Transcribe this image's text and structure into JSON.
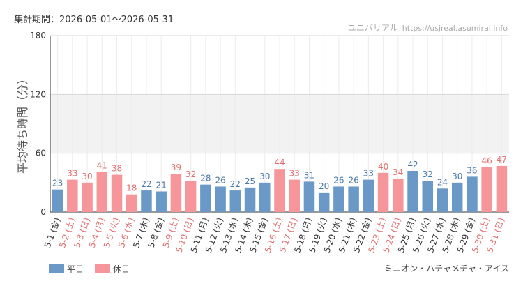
{
  "header": {
    "period_label": "集計期間：",
    "period_value": "2026-05-01～2026-05-31",
    "site_name": "ユニバリアル",
    "site_url": "https://usjreal.asumirai.info"
  },
  "footer": {
    "attraction": "ミニオン・ハチャメチャ・アイス"
  },
  "colors": {
    "weekday": "#6a99c7",
    "holiday": "#f7969a",
    "holiday_label": "#e07070",
    "weekday_label": "#4a79a8"
  },
  "chart_data": {
    "type": "bar",
    "title": "",
    "xlabel": "",
    "ylabel": "平均待ち時間（分）",
    "ylim": [
      0,
      180
    ],
    "yticks": [
      0,
      60,
      120,
      180
    ],
    "grid": true,
    "legend_position": "bottom-left",
    "series": [
      {
        "name": "平日",
        "key": "weekday"
      },
      {
        "name": "休日",
        "key": "holiday"
      }
    ],
    "categories": [
      "5-1 (金)",
      "5-2 (土)",
      "5-3 (日)",
      "5-4 (月)",
      "5-5 (火)",
      "5-6 (水)",
      "5-7 (木)",
      "5-8 (金)",
      "5-9 (土)",
      "5-10 (日)",
      "5-11 (月)",
      "5-12 (火)",
      "5-13 (水)",
      "5-14 (木)",
      "5-15 (金)",
      "5-16 (土)",
      "5-17 (日)",
      "5-18 (月)",
      "5-19 (火)",
      "5-20 (水)",
      "5-21 (木)",
      "5-22 (金)",
      "5-23 (土)",
      "5-24 (日)",
      "5-25 (月)",
      "5-26 (火)",
      "5-27 (水)",
      "5-28 (木)",
      "5-29 (金)",
      "5-30 (土)",
      "5-31 (日)"
    ],
    "values": [
      23,
      33,
      30,
      41,
      38,
      18,
      22,
      21,
      39,
      32,
      28,
      26,
      22,
      25,
      30,
      44,
      33,
      31,
      20,
      26,
      26,
      33,
      40,
      34,
      42,
      32,
      24,
      30,
      36,
      46,
      47
    ],
    "day_type": [
      "weekday",
      "holiday",
      "holiday",
      "holiday",
      "holiday",
      "holiday",
      "weekday",
      "weekday",
      "holiday",
      "holiday",
      "weekday",
      "weekday",
      "weekday",
      "weekday",
      "weekday",
      "holiday",
      "holiday",
      "weekday",
      "weekday",
      "weekday",
      "weekday",
      "weekday",
      "holiday",
      "holiday",
      "weekday",
      "weekday",
      "weekday",
      "weekday",
      "weekday",
      "holiday",
      "holiday"
    ]
  }
}
